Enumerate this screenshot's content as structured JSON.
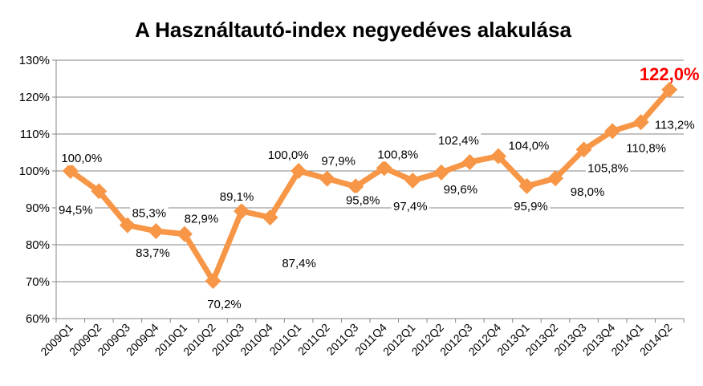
{
  "chart_data": {
    "type": "line",
    "title": "A Használtautó-index negyedéves alakulása",
    "xlabel": "",
    "ylabel": "",
    "ylim": [
      60,
      130
    ],
    "yticks": [
      60,
      70,
      80,
      90,
      100,
      110,
      120,
      130
    ],
    "ytick_labels": [
      "60%",
      "70%",
      "80%",
      "90%",
      "100%",
      "110%",
      "120%",
      "130%"
    ],
    "grid": true,
    "legend": "none",
    "categories": [
      "2009Q1",
      "2009Q2",
      "2009Q3",
      "2009Q4",
      "2010Q1",
      "2010Q2",
      "2010Q3",
      "2010Q4",
      "2011Q1",
      "2011Q2",
      "2011Q3",
      "2011Q4",
      "2012Q1",
      "2012Q2",
      "2012Q3",
      "2012Q4",
      "2013Q1",
      "2013Q2",
      "2013Q3",
      "2013Q4",
      "2014Q1",
      "2014Q2"
    ],
    "series": [
      {
        "name": "Használtautó-index",
        "color": "#F79646",
        "values": [
          100.0,
          94.5,
          85.3,
          83.7,
          82.9,
          70.2,
          89.1,
          87.4,
          100.0,
          97.9,
          95.8,
          100.8,
          97.4,
          99.6,
          102.4,
          104.0,
          95.9,
          98.0,
          105.8,
          110.8,
          113.2,
          122.0
        ],
        "data_labels": [
          "100,0%",
          "94,5%",
          "85,3%",
          "83,7%",
          "82,9%",
          "70,2%",
          "89,1%",
          "87,4%",
          "100,0%",
          "97,9%",
          "95,8%",
          "100,8%",
          "97,4%",
          "99,6%",
          "102,4%",
          "104,0%",
          "95,9%",
          "98,0%",
          "105,8%",
          "110,8%",
          "113,2%",
          "122,0%"
        ]
      }
    ],
    "highlight": {
      "index": 21,
      "color": "#FF0000"
    }
  }
}
